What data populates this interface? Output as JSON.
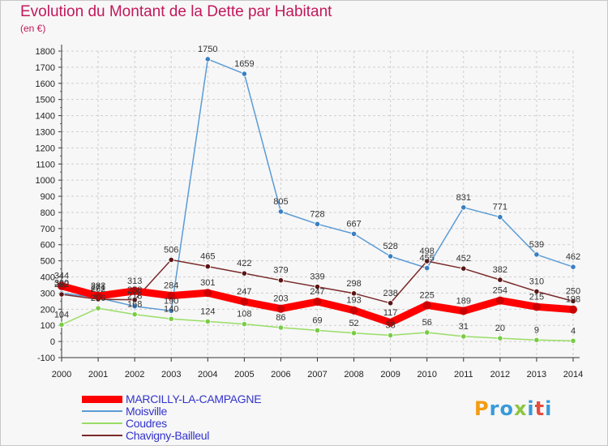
{
  "title": "Evolution du Montant de la Dette par Habitant",
  "unit_label": "(en €)",
  "logo": {
    "text": "Proxiti",
    "letters": [
      {
        "ch": "P",
        "color": "#f39c12"
      },
      {
        "ch": "r",
        "color": "#3a9ad9"
      },
      {
        "ch": "o",
        "color": "#3a9ad9"
      },
      {
        "ch": "x",
        "color": "#8cc63f"
      },
      {
        "ch": "i",
        "color": "#3a9ad9"
      },
      {
        "ch": "t",
        "color": "#e74c3c"
      },
      {
        "ch": "i",
        "color": "#3a9ad9"
      }
    ]
  },
  "chart_data": {
    "type": "line",
    "x": [
      2000,
      2001,
      2002,
      2003,
      2004,
      2005,
      2006,
      2007,
      2008,
      2009,
      2010,
      2011,
      2012,
      2013,
      2014
    ],
    "ylim": [
      -100,
      1800
    ],
    "yticks": [
      -100,
      0,
      100,
      200,
      300,
      400,
      500,
      600,
      700,
      800,
      900,
      1000,
      1100,
      1200,
      1300,
      1400,
      1500,
      1600,
      1700,
      1800
    ],
    "grid": true,
    "legend_position": "bottom-left",
    "series": [
      {
        "name": "MARCILLY-LA-CAMPAGNE",
        "color": "#ff0000",
        "point_color": "#cc0000",
        "emphasis": true,
        "values": [
          344,
          282,
          313,
          284,
          301,
          247,
          203,
          247,
          193,
          117,
          225,
          189,
          254,
          215,
          198
        ]
      },
      {
        "name": "Moisville",
        "color": "#5b9bd5",
        "point_color": "#3a7fc1",
        "emphasis": false,
        "values": [
          300,
          271,
          218,
          190,
          1750,
          1659,
          805,
          728,
          667,
          528,
          455,
          831,
          771,
          539,
          462
        ]
      },
      {
        "name": "Coudres",
        "color": "#99dd66",
        "point_color": "#77cc44",
        "emphasis": false,
        "values": [
          104,
          206,
          168,
          140,
          124,
          108,
          86,
          69,
          52,
          38,
          56,
          31,
          20,
          9,
          4
        ]
      },
      {
        "name": "Chavigny-Bailleul",
        "color": "#7a2a2a",
        "point_color": "#5a1414",
        "emphasis": false,
        "values": [
          292,
          262,
          258,
          506,
          465,
          422,
          379,
          339,
          298,
          238,
          498,
          452,
          382,
          310,
          250
        ]
      }
    ]
  }
}
